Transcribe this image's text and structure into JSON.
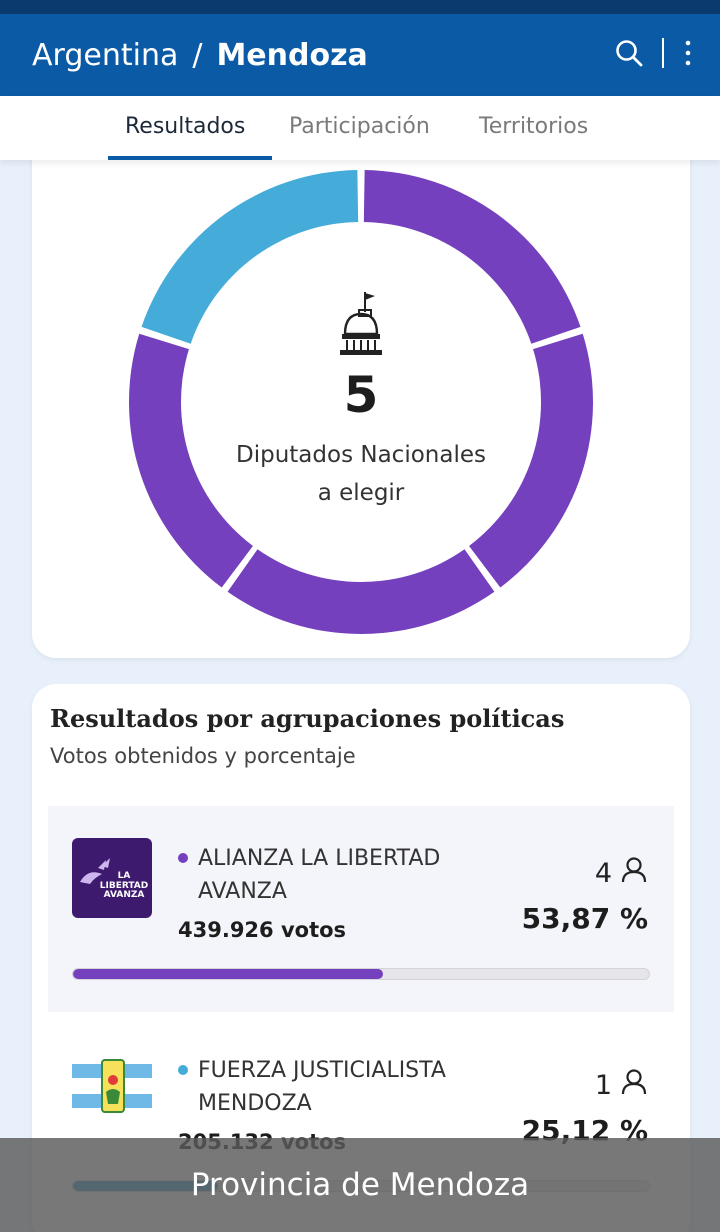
{
  "header": {
    "country": "Argentina",
    "separator": "/",
    "province": "Mendoza",
    "icons": [
      "search-icon",
      "more-vertical-icon"
    ]
  },
  "tabs": [
    {
      "label": "Resultados",
      "active": true
    },
    {
      "label": "Participación",
      "active": false
    },
    {
      "label": "Territorios",
      "active": false
    }
  ],
  "seats_chart": {
    "total": "5",
    "label_line1": "Diputados Nacionales",
    "label_line2": "a elegir",
    "icon": "congress-building-icon",
    "segments": [
      {
        "party": "ALIANZA LA LIBERTAD AVANZA",
        "color": "#7440be"
      },
      {
        "party": "ALIANZA LA LIBERTAD AVANZA",
        "color": "#7440be"
      },
      {
        "party": "ALIANZA LA LIBERTAD AVANZA",
        "color": "#7440be"
      },
      {
        "party": "ALIANZA LA LIBERTAD AVANZA",
        "color": "#7440be"
      },
      {
        "party": "FUERZA JUSTICIALISTA MENDOZA",
        "color": "#45acd9"
      }
    ]
  },
  "results": {
    "title": "Resultados por agrupaciones políticas",
    "subtitle": "Votos obtenidos y porcentaje",
    "parties": [
      {
        "name_line1": "ALIANZA LA LIBERTAD",
        "name_line2": "AVANZA",
        "votes": "439.926 votos",
        "seats": "4",
        "percent": "53,87 %",
        "percent_value": 53.87,
        "color": "#7440be",
        "logo_text_1": "LA",
        "logo_text_2": "LIBERTAD",
        "logo_text_3": "AVANZA"
      },
      {
        "name_line1": "FUERZA JUSTICIALISTA",
        "name_line2": "MENDOZA",
        "votes": "205.132 votos",
        "seats": "1",
        "percent": "25,12 %",
        "percent_value": 25.12,
        "color": "#3a9fd0"
      }
    ]
  },
  "caption": "Provincia de Mendoza"
}
